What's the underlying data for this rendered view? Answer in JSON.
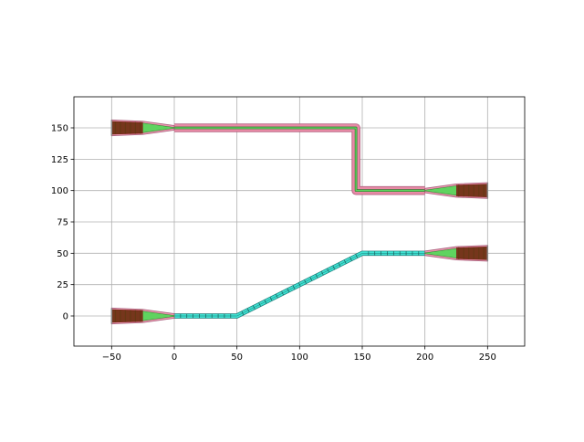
{
  "chart_data": {
    "type": "layout",
    "title": "",
    "xlabel": "",
    "ylabel": "",
    "xlim": [
      -80,
      280
    ],
    "ylim": [
      -24,
      175
    ],
    "grid": true,
    "aspect": "equal",
    "xticks": [
      -50,
      0,
      50,
      100,
      150,
      200,
      250
    ],
    "yticks": [
      0,
      25,
      50,
      75,
      100,
      125,
      150
    ],
    "xtick_labels": [
      "−50",
      "0",
      "50",
      "100",
      "150",
      "200",
      "250"
    ],
    "ytick_labels": [
      "0",
      "25",
      "50",
      "75",
      "100",
      "125",
      "150"
    ],
    "colors": {
      "cladding": "#e88aa6",
      "core": "#5fd35f",
      "grating": "#7a1a10",
      "route": "#3fe0d0",
      "grid": "#b0b0b0"
    },
    "grating_couplers": [
      {
        "x": 0,
        "y": 150,
        "direction": "left"
      },
      {
        "x": 0,
        "y": 0,
        "direction": "left"
      },
      {
        "x": 200,
        "y": 100,
        "direction": "right"
      },
      {
        "x": 200,
        "y": 50,
        "direction": "right"
      }
    ],
    "routes": [
      {
        "style": "strip",
        "points": [
          [
            0,
            150
          ],
          [
            145,
            150
          ],
          [
            145,
            100
          ],
          [
            200,
            100
          ]
        ]
      },
      {
        "style": "cyan",
        "points": [
          [
            0,
            0
          ],
          [
            50,
            0
          ],
          [
            150,
            50
          ],
          [
            200,
            50
          ]
        ]
      }
    ]
  }
}
